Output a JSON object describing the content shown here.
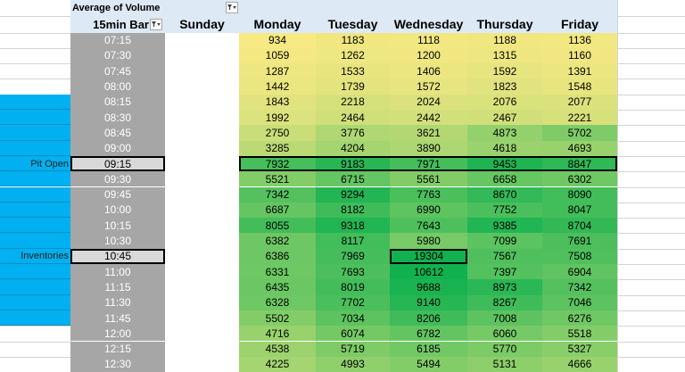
{
  "pivot": {
    "title": "Average of Volume",
    "row_header": "15min Bar",
    "days": [
      "Sunday",
      "Monday",
      "Tuesday",
      "Wednesday",
      "Thursday",
      "Friday"
    ]
  },
  "annotations": {
    "pit_open": "Pit Open",
    "inventories": "Inventories"
  },
  "rows": [
    {
      "time": "07:15",
      "values": [
        "934",
        "1183",
        "1118",
        "1188",
        "1136"
      ]
    },
    {
      "time": "07:30",
      "values": [
        "1059",
        "1262",
        "1200",
        "1315",
        "1160"
      ]
    },
    {
      "time": "07:45",
      "values": [
        "1287",
        "1533",
        "1406",
        "1592",
        "1391"
      ]
    },
    {
      "time": "08:00",
      "values": [
        "1442",
        "1739",
        "1572",
        "1823",
        "1548"
      ]
    },
    {
      "time": "08:15",
      "values": [
        "1843",
        "2218",
        "2024",
        "2076",
        "2077"
      ]
    },
    {
      "time": "08:30",
      "values": [
        "1992",
        "2464",
        "2442",
        "2467",
        "2221"
      ]
    },
    {
      "time": "08:45",
      "values": [
        "2750",
        "3776",
        "3621",
        "4873",
        "5702"
      ]
    },
    {
      "time": "09:00",
      "values": [
        "3285",
        "4204",
        "3890",
        "4618",
        "4693"
      ]
    },
    {
      "time": "09:15",
      "values": [
        "7932",
        "9183",
        "7971",
        "9453",
        "8847"
      ]
    },
    {
      "time": "09:30",
      "values": [
        "5521",
        "6715",
        "5561",
        "6658",
        "6302"
      ]
    },
    {
      "time": "09:45",
      "values": [
        "7342",
        "9294",
        "7763",
        "8670",
        "8090"
      ]
    },
    {
      "time": "10:00",
      "values": [
        "6687",
        "8182",
        "6990",
        "7752",
        "8047"
      ]
    },
    {
      "time": "10:15",
      "values": [
        "8055",
        "9318",
        "7643",
        "9385",
        "8704"
      ]
    },
    {
      "time": "10:30",
      "values": [
        "6382",
        "8117",
        "5980",
        "7099",
        "7691"
      ]
    },
    {
      "time": "10:45",
      "values": [
        "6386",
        "7969",
        "19304",
        "7567",
        "7508"
      ]
    },
    {
      "time": "11:00",
      "values": [
        "6331",
        "7693",
        "10612",
        "7397",
        "6904"
      ]
    },
    {
      "time": "11:15",
      "values": [
        "6435",
        "8019",
        "9688",
        "8973",
        "7342"
      ]
    },
    {
      "time": "11:30",
      "values": [
        "6328",
        "7702",
        "9140",
        "8267",
        "7046"
      ]
    },
    {
      "time": "11:45",
      "values": [
        "5502",
        "7034",
        "8206",
        "7008",
        "6276"
      ]
    },
    {
      "time": "12:00",
      "values": [
        "4716",
        "6074",
        "6782",
        "6060",
        "5518"
      ]
    },
    {
      "time": "12:15",
      "values": [
        "4538",
        "5719",
        "6185",
        "5770",
        "5327"
      ]
    },
    {
      "time": "12:30",
      "values": [
        "4225",
        "4993",
        "5494",
        "5131",
        "4666"
      ]
    }
  ],
  "colors": {
    "time_column": "#a6a6a6",
    "time_text": "#ffffff",
    "highlight_row_bg": "#d9d9d9",
    "annotation_blue": "#00b0f0",
    "pivot_header_bg": "#dde9f5",
    "scale_low": "#f8e983",
    "scale_high": "#11b14f"
  },
  "icons": {
    "row_filter": "filter-dropdown-icon",
    "column_filter": "filter-dropdown-icon"
  }
}
